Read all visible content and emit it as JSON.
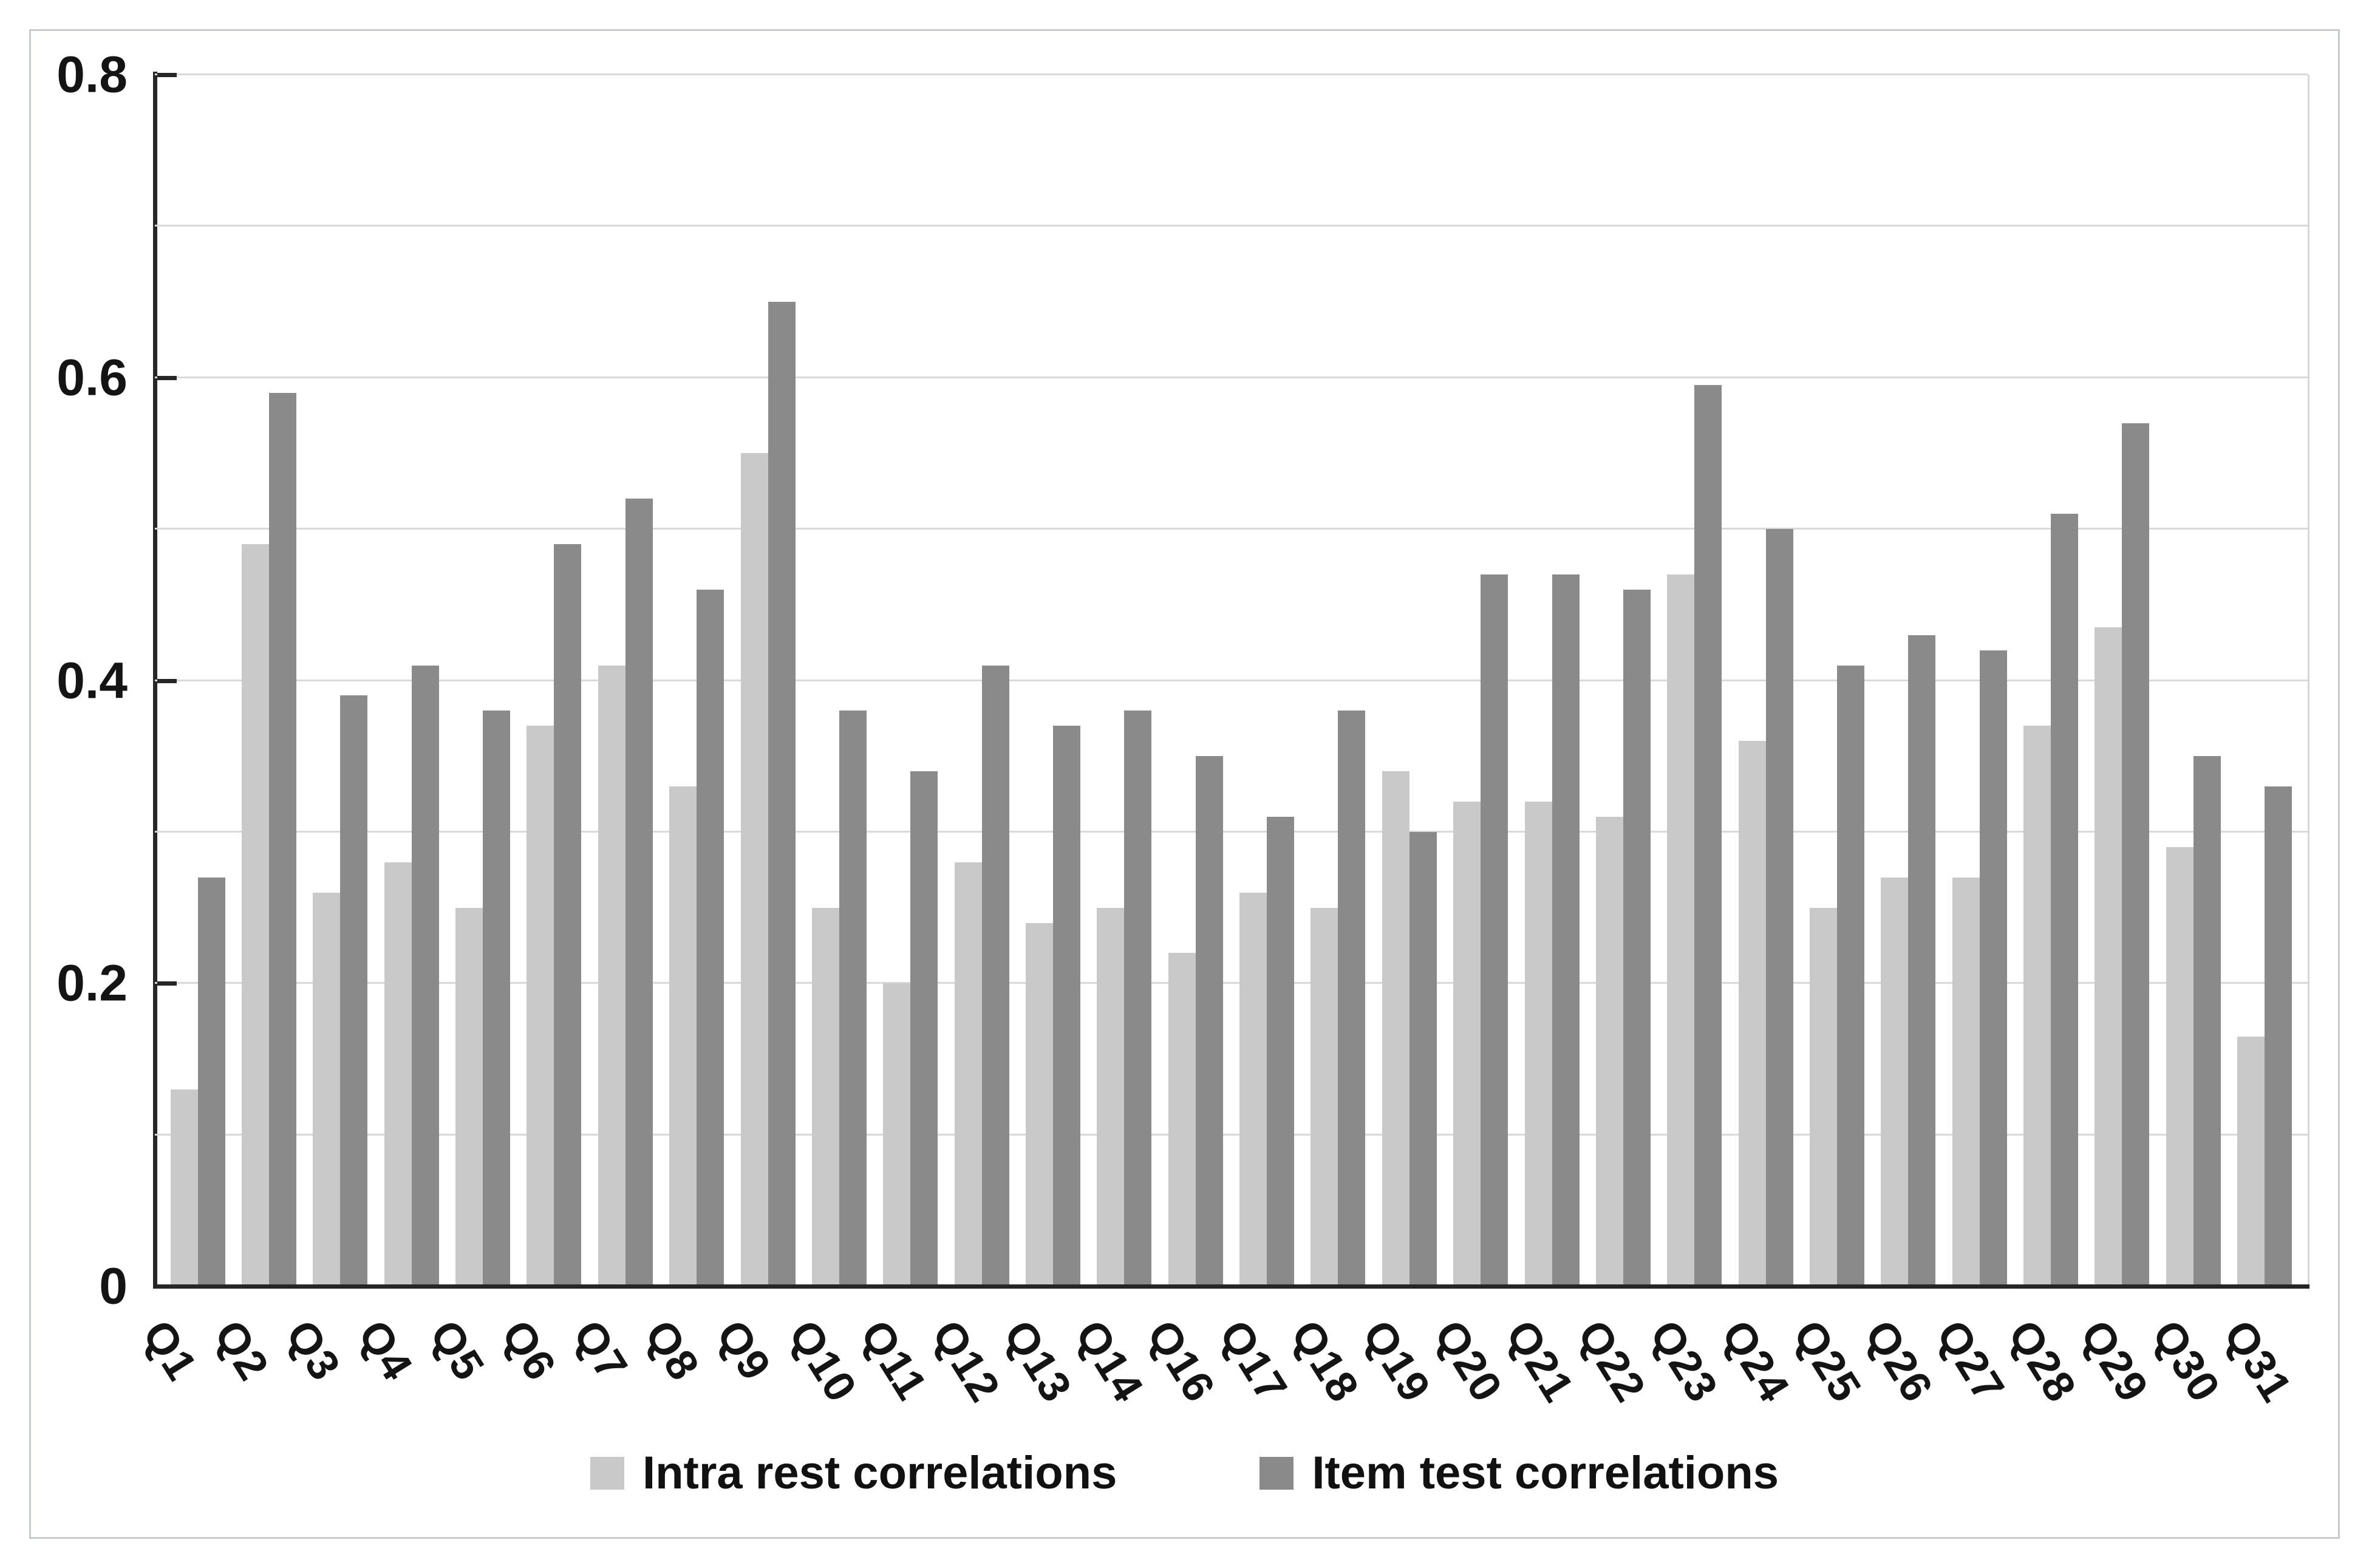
{
  "chart_data": {
    "type": "bar",
    "title": "",
    "xlabel": "",
    "ylabel": "",
    "categories": [
      "Q1",
      "Q2",
      "Q3",
      "Q4",
      "Q5",
      "Q6",
      "Q7",
      "Q8",
      "Q9",
      "Q10",
      "Q11",
      "Q12",
      "Q13",
      "Q14",
      "Q16",
      "Q17",
      "Q18",
      "Q19",
      "Q20",
      "Q21",
      "Q22",
      "Q23",
      "Q24",
      "Q25",
      "Q26",
      "Q27",
      "Q28",
      "Q29",
      "Q30",
      "Q31"
    ],
    "series": [
      {
        "name": "Intra rest correlations",
        "color": "#c9c9c9",
        "values": [
          0.13,
          0.49,
          0.26,
          0.28,
          0.25,
          0.37,
          0.41,
          0.33,
          0.55,
          0.25,
          0.2,
          0.28,
          0.24,
          0.25,
          0.22,
          0.26,
          0.25,
          0.34,
          0.32,
          0.32,
          0.31,
          0.47,
          0.36,
          0.25,
          0.27,
          0.27,
          0.37,
          0.435,
          0.29,
          0.165
        ]
      },
      {
        "name": "Item test correlations",
        "color": "#8a8a8a",
        "values": [
          0.27,
          0.59,
          0.39,
          0.41,
          0.38,
          0.49,
          0.52,
          0.46,
          0.65,
          0.38,
          0.34,
          0.41,
          0.37,
          0.38,
          0.35,
          0.31,
          0.38,
          0.3,
          0.47,
          0.47,
          0.46,
          0.595,
          0.5,
          0.41,
          0.43,
          0.42,
          0.51,
          0.57,
          0.35,
          0.33
        ]
      }
    ],
    "ylim": [
      0,
      0.8
    ],
    "yticks": [
      0,
      0.2,
      0.4,
      0.6,
      0.8
    ],
    "ytick_labels": [
      "0",
      "0.2",
      "0.4",
      "0.6",
      "0.8"
    ],
    "gridline_step": 0.1,
    "grid": "on",
    "legend_position": "bottom",
    "bar_gap_in_pair": 0,
    "label_rotation_deg": 58
  },
  "colors": {
    "gridline": "#d9d9d9",
    "axis": "#262626",
    "frame_border": "#c7cbce",
    "text": "#141414",
    "background": "#ffffff"
  }
}
